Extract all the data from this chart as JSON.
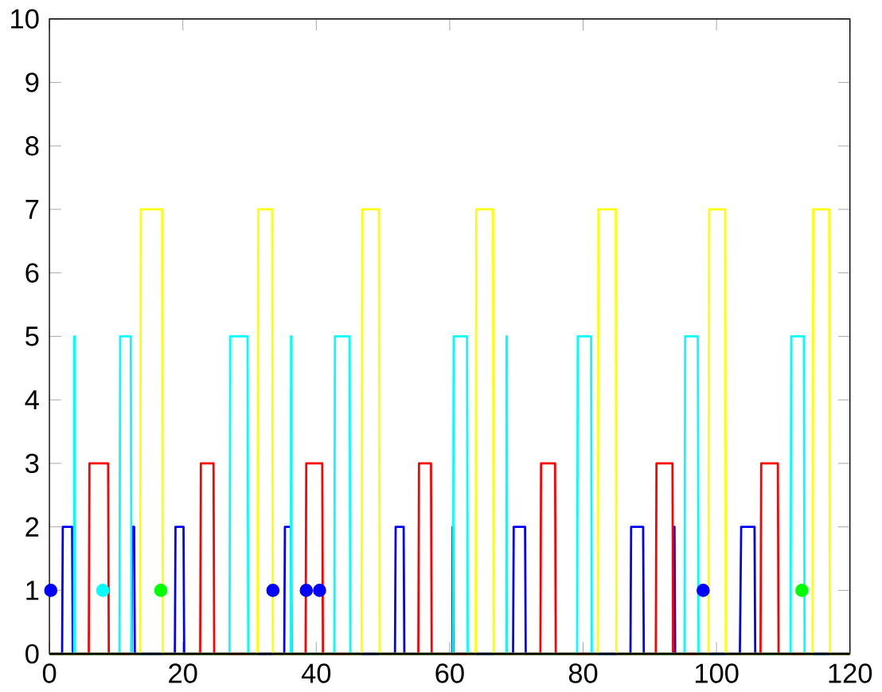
{
  "chart_data": {
    "type": "line",
    "xlim": [
      0,
      120
    ],
    "ylim": [
      0,
      10
    ],
    "xticks": [
      0,
      20,
      40,
      60,
      80,
      100,
      120
    ],
    "yticks": [
      0,
      1,
      2,
      3,
      4,
      5,
      6,
      7,
      8,
      9,
      10
    ],
    "grid": false,
    "series": [
      {
        "color": "#0000ff",
        "x": [
          0,
          1.9,
          2.0,
          3.4,
          3.5,
          12.3,
          12.4,
          12.7,
          12.8,
          18.8,
          18.9,
          20.1,
          20.2,
          35.2,
          35.3,
          36.2,
          36.3,
          51.8,
          51.9,
          53.1,
          53.2,
          60.4,
          60.45,
          60.5,
          60.55,
          69.5,
          69.6,
          71.3,
          71.4,
          87.1,
          87.2,
          89.0,
          89.1,
          93.5,
          93.6,
          93.7,
          93.8,
          103.5,
          103.7,
          105.7,
          105.8,
          120
        ],
        "values": [
          0,
          0,
          2,
          2,
          0,
          0,
          2,
          2,
          0,
          0,
          2,
          2,
          0,
          0,
          2,
          2,
          0,
          0,
          2,
          2,
          0,
          0,
          2,
          2,
          0,
          0,
          2,
          2,
          0,
          0,
          2,
          2,
          0,
          0,
          2,
          2,
          0,
          0,
          2,
          2,
          0,
          0
        ]
      },
      {
        "color": "#ff0000",
        "x": [
          0,
          5.9,
          6.0,
          8.8,
          8.9,
          22.6,
          22.7,
          24.6,
          24.7,
          38.4,
          38.5,
          40.9,
          41.0,
          55.3,
          55.4,
          57.2,
          57.3,
          73.6,
          73.7,
          75.8,
          75.9,
          90.9,
          91.0,
          93.4,
          93.5,
          106.6,
          106.7,
          109.2,
          109.3,
          120
        ],
        "values": [
          0,
          0,
          3,
          3,
          0,
          0,
          3,
          3,
          0,
          0,
          3,
          3,
          0,
          0,
          3,
          3,
          0,
          0,
          3,
          3,
          0,
          0,
          3,
          3,
          0,
          0,
          3,
          3,
          0,
          0
        ]
      },
      {
        "color": "#00ffff",
        "x": [
          0,
          3.7,
          3.72,
          3.78,
          3.8,
          10.5,
          10.6,
          12.2,
          12.3,
          27.0,
          27.1,
          29.7,
          29.8,
          36.2,
          36.22,
          36.28,
          36.3,
          42.7,
          42.8,
          45.0,
          45.1,
          60.5,
          60.6,
          62.6,
          62.7,
          68.5,
          68.52,
          68.58,
          68.6,
          79.1,
          79.2,
          81.2,
          81.3,
          95.2,
          95.3,
          97.2,
          97.3,
          111.1,
          111.2,
          113.1,
          113.2,
          120
        ],
        "values": [
          0,
          0,
          5,
          5,
          0,
          0,
          5,
          5,
          0,
          0,
          5,
          5,
          0,
          0,
          5,
          5,
          0,
          0,
          5,
          5,
          0,
          0,
          5,
          5,
          0,
          0,
          5,
          5,
          0,
          0,
          5,
          5,
          0,
          0,
          5,
          5,
          0,
          0,
          5,
          5,
          0,
          0
        ]
      },
      {
        "color": "#ffff00",
        "x": [
          0,
          13.6,
          13.7,
          16.9,
          17.0,
          31.2,
          31.3,
          33.4,
          33.5,
          46.8,
          46.9,
          49.4,
          49.5,
          63.9,
          64.0,
          66.5,
          66.6,
          82.2,
          82.3,
          84.9,
          85.0,
          98.8,
          98.9,
          101.3,
          101.4,
          114.4,
          114.5,
          116.9,
          117.0,
          120
        ],
        "values": [
          0,
          0,
          7,
          7,
          0,
          0,
          7,
          7,
          0,
          0,
          7,
          7,
          0,
          0,
          7,
          7,
          0,
          0,
          7,
          7,
          0,
          0,
          7,
          7,
          0,
          0,
          7,
          7,
          0,
          0
        ]
      },
      {
        "color": "#000000",
        "x": [
          0,
          120
        ],
        "values": [
          0,
          0
        ]
      },
      {
        "type": "scatter",
        "marker": "circle",
        "color": "#0000ff",
        "x": [
          0.2,
          33.5,
          38.5,
          40.5,
          98
        ],
        "values": [
          1,
          1,
          1,
          1,
          1
        ]
      },
      {
        "type": "scatter",
        "marker": "circle",
        "color": "#00ffff",
        "x": [
          8
        ],
        "values": [
          1
        ]
      },
      {
        "type": "scatter",
        "marker": "circle",
        "color": "#00ff00",
        "x": [
          16.7,
          112.8
        ],
        "values": [
          1,
          1
        ]
      }
    ]
  }
}
